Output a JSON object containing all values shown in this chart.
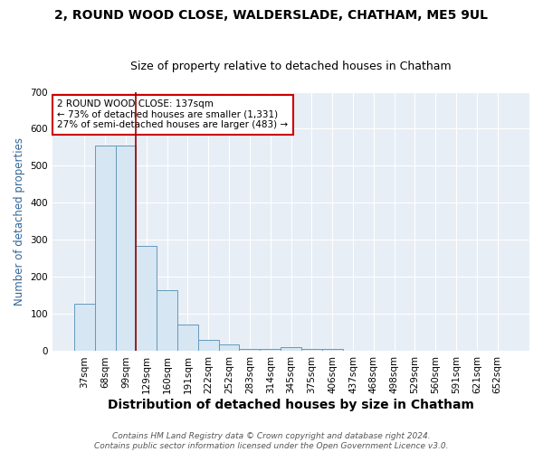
{
  "title1": "2, ROUND WOOD CLOSE, WALDERSLADE, CHATHAM, ME5 9UL",
  "title2": "Size of property relative to detached houses in Chatham",
  "xlabel": "Distribution of detached houses by size in Chatham",
  "ylabel": "Number of detached properties",
  "footer": "Contains HM Land Registry data © Crown copyright and database right 2024.\nContains public sector information licensed under the Open Government Licence v3.0.",
  "categories": [
    "37sqm",
    "68sqm",
    "99sqm",
    "129sqm",
    "160sqm",
    "191sqm",
    "222sqm",
    "252sqm",
    "283sqm",
    "314sqm",
    "345sqm",
    "375sqm",
    "406sqm",
    "437sqm",
    "468sqm",
    "498sqm",
    "529sqm",
    "560sqm",
    "591sqm",
    "621sqm",
    "652sqm"
  ],
  "values": [
    128,
    555,
    555,
    285,
    165,
    72,
    30,
    18,
    7,
    7,
    10,
    5,
    5,
    2,
    0,
    0,
    0,
    0,
    0,
    0,
    0
  ],
  "bar_color": "#d6e6f2",
  "bar_edge_color": "#6699bb",
  "vline_color": "#990000",
  "vline_x": 2.5,
  "annotation_text": "2 ROUND WOOD CLOSE: 137sqm\n← 73% of detached houses are smaller (1,331)\n27% of semi-detached houses are larger (483) →",
  "annotation_box_color": "#ffffff",
  "annotation_box_edge": "#cc0000",
  "ylim": [
    0,
    700
  ],
  "yticks": [
    0,
    100,
    200,
    300,
    400,
    500,
    600,
    700
  ],
  "plot_bg_color": "#e8eef5",
  "fig_bg_color": "#ffffff",
  "grid_color": "#ffffff",
  "title1_fontsize": 10,
  "title2_fontsize": 9,
  "xlabel_fontsize": 10,
  "ylabel_fontsize": 8.5,
  "tick_fontsize": 7.5,
  "footer_fontsize": 6.5
}
